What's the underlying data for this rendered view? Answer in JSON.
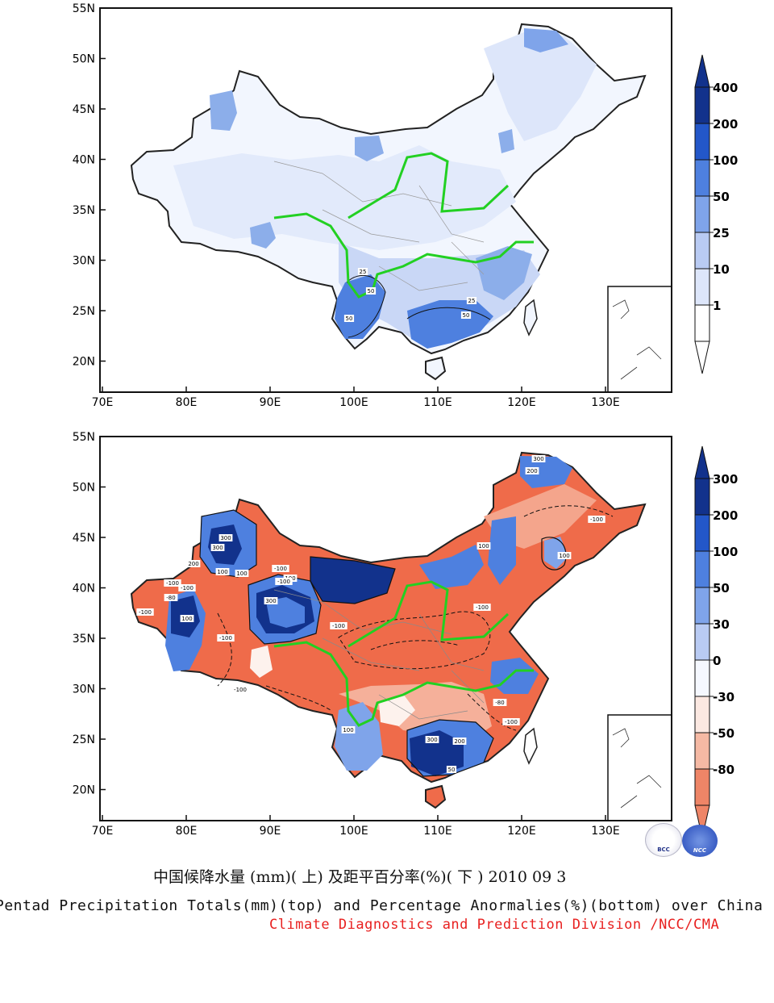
{
  "maps": {
    "lat_labels": [
      "55N",
      "50N",
      "45N",
      "40N",
      "35N",
      "30N",
      "25N",
      "20N"
    ],
    "lon_labels": [
      "70E",
      "80E",
      "90E",
      "100E",
      "110E",
      "120E",
      "130E"
    ],
    "top": {
      "colorbar_labels": [
        "400",
        "200",
        "100",
        "50",
        "25",
        "10",
        "1"
      ],
      "contour_labels": [
        "25",
        "50",
        "25",
        "50",
        "50"
      ]
    },
    "bottom": {
      "colorbar_labels": [
        "300",
        "200",
        "100",
        "50",
        "30",
        "0",
        "-30",
        "-50",
        "-80"
      ],
      "contour_labels": [
        "300",
        "300",
        "200",
        "100",
        "100",
        "-100",
        "-100",
        "-80",
        "-100",
        "-100",
        "300",
        "100",
        "-100",
        "100",
        "-100",
        "-100",
        "300",
        "200",
        "50",
        "100",
        "-100",
        "-80",
        "-100",
        "300",
        "200",
        "100",
        "-100",
        "100",
        "-100"
      ]
    }
  },
  "captions": {
    "title_cn": "中国候降水量 (mm)( 上) 及距平百分率(%)( 下 ) 2010 09 3",
    "title_en": "Pentad Precipitation Totals(mm)(top) and Percentage Anormalies(%)(bottom) over China",
    "division": "Climate Diagnostics and Prediction Division /NCC/CMA"
  },
  "logos": {
    "left": "BCC",
    "right": "NCC"
  },
  "colors": {
    "rainbelt_line": "#22d022",
    "division_text": "#e8201f",
    "top_scale": [
      "#ffffff",
      "#dde6fa",
      "#b9cbf3",
      "#7fa4ea",
      "#4e80df",
      "#2357c9",
      "#12328c"
    ],
    "bottom_scale_wet": [
      "#f5f8ff",
      "#b9cbf3",
      "#7fa4ea",
      "#4e80df",
      "#2357c9",
      "#12328c"
    ],
    "bottom_scale_dry": [
      "#fbe8e1",
      "#f5b9a4",
      "#ee8567",
      "#e85c3a"
    ]
  }
}
